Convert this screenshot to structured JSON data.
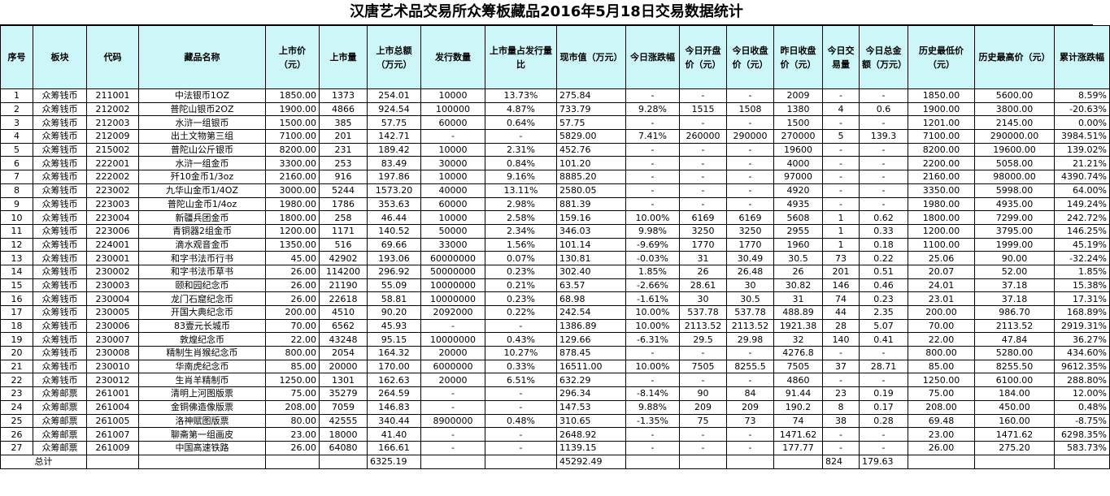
{
  "title": "汉唐艺术品交易所众筹板藏品2016年5月18日交易数据统计",
  "header": {
    "seq": "序号",
    "board": "板块",
    "code": "代码",
    "name": "藏品名称",
    "list_price": "上市价（元）",
    "list_qty": "上市量",
    "list_total": "上市总额（万元）",
    "issue_qty": "发行数量",
    "list_ratio": "上市量占发行量比",
    "market_value": "现市值（万元）",
    "today_change": "今日涨跌幅",
    "today_open": "今日开盘价（元）",
    "today_close": "今日收盘价（元）",
    "yesterday_close": "昨日收盘价（元）",
    "today_volume": "今日交易量",
    "today_amount": "今日总金额（万元）",
    "hist_low": "历史最低价（元）",
    "hist_high": "历史最高价（元）",
    "cum_change": "累计涨跌幅"
  },
  "rows": [
    [
      "1",
      "众筹钱币",
      "211001",
      "中法银币1OZ",
      "1850.00",
      "1373",
      "254.01",
      "10000",
      "13.73%",
      "275.84",
      "-",
      "-",
      "-",
      "2009",
      "-",
      "-",
      "1850.00",
      "5600.00",
      "8.59%"
    ],
    [
      "2",
      "众筹钱币",
      "212002",
      "普陀山银币2OZ",
      "1900.00",
      "4866",
      "924.54",
      "100000",
      "4.87%",
      "733.79",
      "9.28%",
      "1515",
      "1508",
      "1380",
      "4",
      "0.6",
      "1900.00",
      "3800.00",
      "-20.63%"
    ],
    [
      "3",
      "众筹钱币",
      "212003",
      "水浒一组银币",
      "1500.00",
      "385",
      "57.75",
      "60000",
      "0.64%",
      "57.75",
      "-",
      "-",
      "-",
      "1500",
      "-",
      "-",
      "1201.00",
      "2145.00",
      "0.00%"
    ],
    [
      "4",
      "众筹钱币",
      "212009",
      "出土文物第三组",
      "7100.00",
      "201",
      "142.71",
      "-",
      "-",
      "5829.00",
      "7.41%",
      "260000",
      "290000",
      "270000",
      "5",
      "139.3",
      "7100.00",
      "290000.00",
      "3984.51%"
    ],
    [
      "5",
      "众筹钱币",
      "215002",
      "普陀山公斤银币",
      "8200.00",
      "231",
      "189.42",
      "10000",
      "2.31%",
      "452.76",
      "-",
      "-",
      "-",
      "19600",
      "-",
      "-",
      "8200.00",
      "19600.00",
      "139.02%"
    ],
    [
      "6",
      "众筹钱币",
      "222001",
      "水浒一组金币",
      "3300.00",
      "253",
      "83.49",
      "30000",
      "0.84%",
      "101.20",
      "-",
      "-",
      "-",
      "4000",
      "-",
      "-",
      "2200.00",
      "5058.00",
      "21.21%"
    ],
    [
      "7",
      "众筹钱币",
      "222002",
      "歼10金币1/3oz",
      "2160.00",
      "916",
      "197.86",
      "10000",
      "9.16%",
      "8885.20",
      "-",
      "-",
      "-",
      "97000",
      "-",
      "-",
      "2160.00",
      "98000.00",
      "4390.74%"
    ],
    [
      "8",
      "众筹钱币",
      "223002",
      "九华山金币1/4OZ",
      "3000.00",
      "5244",
      "1573.20",
      "40000",
      "13.11%",
      "2580.05",
      "-",
      "-",
      "-",
      "4920",
      "-",
      "-",
      "3350.00",
      "5998.00",
      "64.00%"
    ],
    [
      "9",
      "众筹钱币",
      "223003",
      "普陀山金币1/4oz",
      "1980.00",
      "1786",
      "353.63",
      "60000",
      "2.98%",
      "881.39",
      "-",
      "-",
      "-",
      "4935",
      "-",
      "-",
      "1980.00",
      "4935.00",
      "149.24%"
    ],
    [
      "10",
      "众筹钱币",
      "223004",
      "新疆兵团金币",
      "1800.00",
      "258",
      "46.44",
      "10000",
      "2.58%",
      "159.16",
      "10.00%",
      "6169",
      "6169",
      "5608",
      "1",
      "0.62",
      "1800.00",
      "7299.00",
      "242.72%"
    ],
    [
      "11",
      "众筹钱币",
      "223006",
      "青铜器2组金币",
      "1200.00",
      "1171",
      "140.52",
      "50000",
      "2.34%",
      "346.03",
      "9.98%",
      "3250",
      "3250",
      "2955",
      "1",
      "0.33",
      "1200.00",
      "3795.00",
      "146.25%"
    ],
    [
      "12",
      "众筹钱币",
      "224001",
      "滴水观音金币",
      "1350.00",
      "516",
      "69.66",
      "33000",
      "1.56%",
      "101.14",
      "-9.69%",
      "1770",
      "1770",
      "1960",
      "1",
      "0.18",
      "1100.00",
      "1999.00",
      "45.19%"
    ],
    [
      "13",
      "众筹钱币",
      "230001",
      "和字书法币行书",
      "45.00",
      "42902",
      "193.06",
      "60000000",
      "0.07%",
      "130.81",
      "-0.03%",
      "31",
      "30.49",
      "30.5",
      "73",
      "0.22",
      "25.06",
      "90.00",
      "-32.24%"
    ],
    [
      "14",
      "众筹钱币",
      "230002",
      "和字书法币草书",
      "26.00",
      "114200",
      "296.92",
      "50000000",
      "0.23%",
      "302.40",
      "1.85%",
      "26",
      "26.48",
      "26",
      "201",
      "0.51",
      "20.07",
      "52.00",
      "1.85%"
    ],
    [
      "15",
      "众筹钱币",
      "230003",
      "颐和园纪念币",
      "26.00",
      "21190",
      "55.09",
      "10000000",
      "0.21%",
      "63.57",
      "-2.66%",
      "28.61",
      "30",
      "30.82",
      "146",
      "0.46",
      "24.01",
      "37.18",
      "15.38%"
    ],
    [
      "16",
      "众筹钱币",
      "230004",
      "龙门石窟纪念币",
      "26.00",
      "22618",
      "58.81",
      "10000000",
      "0.23%",
      "68.98",
      "-1.61%",
      "30",
      "30.5",
      "31",
      "74",
      "0.23",
      "23.01",
      "37.18",
      "17.31%"
    ],
    [
      "17",
      "众筹钱币",
      "230005",
      "开国大典纪念币",
      "200.00",
      "4510",
      "90.20",
      "2092000",
      "0.22%",
      "242.54",
      "10.00%",
      "537.78",
      "537.78",
      "488.89",
      "44",
      "2.35",
      "200.00",
      "986.70",
      "168.89%"
    ],
    [
      "18",
      "众筹钱币",
      "230006",
      "83壹元长城币",
      "70.00",
      "6562",
      "45.93",
      "-",
      "-",
      "1386.89",
      "10.00%",
      "2113.52",
      "2113.52",
      "1921.38",
      "28",
      "5.07",
      "70.00",
      "2113.52",
      "2919.31%"
    ],
    [
      "19",
      "众筹钱币",
      "230007",
      "敦煌纪念币",
      "22.00",
      "43248",
      "95.15",
      "10000000",
      "0.43%",
      "129.66",
      "-6.31%",
      "29.5",
      "29.98",
      "32",
      "140",
      "0.41",
      "22.00",
      "47.84",
      "36.27%"
    ],
    [
      "20",
      "众筹钱币",
      "230008",
      "精制生肖猴纪念币",
      "800.00",
      "2054",
      "164.32",
      "20000",
      "10.27%",
      "878.45",
      "-",
      "-",
      "-",
      "4276.8",
      "-",
      "-",
      "800.00",
      "5280.00",
      "434.60%"
    ],
    [
      "21",
      "众筹钱币",
      "230010",
      "华南虎纪念币",
      "85.00",
      "20000",
      "170.00",
      "6000000",
      "0.33%",
      "16511.00",
      "10.00%",
      "7505",
      "8255.5",
      "7505",
      "37",
      "28.71",
      "85.00",
      "8255.50",
      "9612.35%"
    ],
    [
      "22",
      "众筹钱币",
      "230012",
      "生肖羊精制币",
      "1250.00",
      "1301",
      "162.63",
      "20000",
      "6.51%",
      "632.29",
      "-",
      "-",
      "-",
      "4860",
      "-",
      "-",
      "1250.00",
      "6100.00",
      "288.80%"
    ],
    [
      "23",
      "众筹邮票",
      "261001",
      "清明上河图版票",
      "75.00",
      "35279",
      "264.59",
      "-",
      "-",
      "296.34",
      "-8.14%",
      "90",
      "84",
      "91.44",
      "23",
      "0.19",
      "75.00",
      "184.00",
      "12.00%"
    ],
    [
      "24",
      "众筹邮票",
      "261004",
      "金铜佛造像版票",
      "208.00",
      "7059",
      "146.83",
      "-",
      "-",
      "147.53",
      "9.88%",
      "209",
      "209",
      "190.2",
      "8",
      "0.17",
      "208.00",
      "450.00",
      "0.48%"
    ],
    [
      "25",
      "众筹邮票",
      "261005",
      "洛神赋图版票",
      "80.00",
      "42555",
      "340.44",
      "8900000",
      "0.48%",
      "310.65",
      "-1.35%",
      "75",
      "73",
      "74",
      "38",
      "0.28",
      "69.48",
      "160.00",
      "-8.75%"
    ],
    [
      "26",
      "众筹邮票",
      "261007",
      "聊斋第一组画皮",
      "23.00",
      "18000",
      "41.40",
      "-",
      "-",
      "2648.92",
      "-",
      "-",
      "-",
      "1471.62",
      "-",
      "-",
      "23.00",
      "1471.62",
      "6298.35%"
    ],
    [
      "27",
      "众筹邮票",
      "261009",
      "中国高速铁路",
      "26.00",
      "64080",
      "166.61",
      "-",
      "-",
      "1139.15",
      "-",
      "-",
      "-",
      "177.77",
      "-",
      "-",
      "26.00",
      "275.20",
      "583.73%"
    ]
  ],
  "total": {
    "label": "总计",
    "list_total": "6325.19",
    "market_value": "45292.49",
    "today_volume": "824",
    "today_amount": "179.63"
  }
}
